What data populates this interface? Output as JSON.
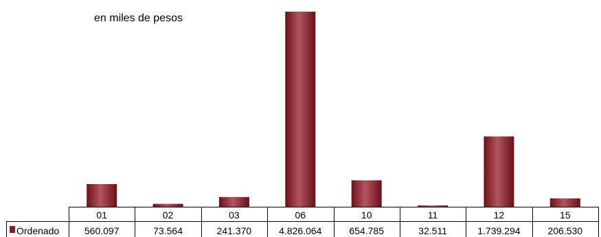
{
  "chart_data": {
    "type": "bar",
    "title": "",
    "subtitle": "en miles de pesos",
    "xlabel": "",
    "ylabel": "",
    "categories": [
      "01",
      "02",
      "03",
      "06",
      "10",
      "11",
      "12",
      "15"
    ],
    "series": [
      {
        "name": "Ordenado",
        "values": [
          560097,
          73564,
          241370,
          4826064,
          654785,
          32511,
          1739294,
          206530
        ],
        "value_labels": [
          "560.097",
          "73.564",
          "241.370",
          "4.826.064",
          "654.785",
          "32.511",
          "1.739.294",
          "206.530"
        ],
        "color": "#8b1c24"
      }
    ],
    "ylim": [
      0,
      4826064
    ],
    "grid": false,
    "legend": "data-table"
  }
}
